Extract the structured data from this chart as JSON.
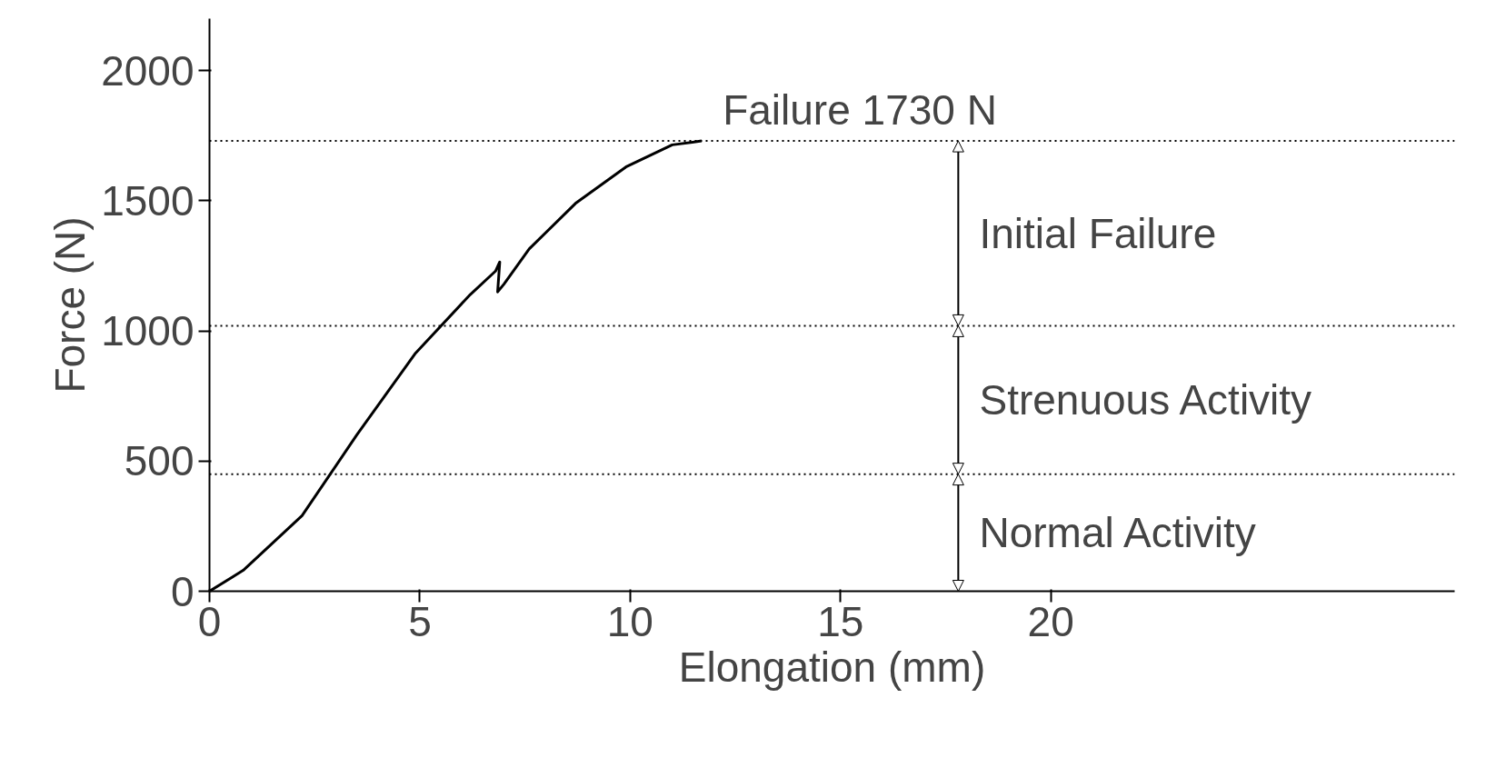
{
  "chart_data": {
    "type": "line",
    "xlabel": "Elongation (mm)",
    "ylabel": "Force (N)",
    "x": [
      0,
      0.8,
      2.2,
      3.5,
      4.9,
      6.2,
      6.8,
      6.9,
      6.85,
      7.0,
      7.6,
      8.7,
      9.9,
      11.0,
      11.7
    ],
    "values": [
      0,
      80,
      290,
      600,
      915,
      1140,
      1230,
      1265,
      1150,
      1180,
      1315,
      1490,
      1630,
      1715,
      1730
    ],
    "color": "#000000",
    "line_style": "solid",
    "marker": "none",
    "grid": false,
    "xlim": [
      0,
      29.6
    ],
    "ylim": [
      0,
      2200
    ],
    "xticks": [
      0,
      5,
      10,
      15,
      20
    ],
    "yticks": [
      0,
      500,
      1000,
      1500,
      2000
    ],
    "ref_lines": [
      {
        "axis": "y",
        "value": 1730,
        "label": "Failure 1730 N",
        "line_style": "dotted"
      },
      {
        "axis": "y",
        "value": 1020,
        "line_style": "dotted"
      },
      {
        "axis": "y",
        "value": 450,
        "line_style": "dotted"
      }
    ],
    "annotations": [
      "Initial Failure",
      "Strenuous Activity",
      "Normal Activity"
    ]
  }
}
